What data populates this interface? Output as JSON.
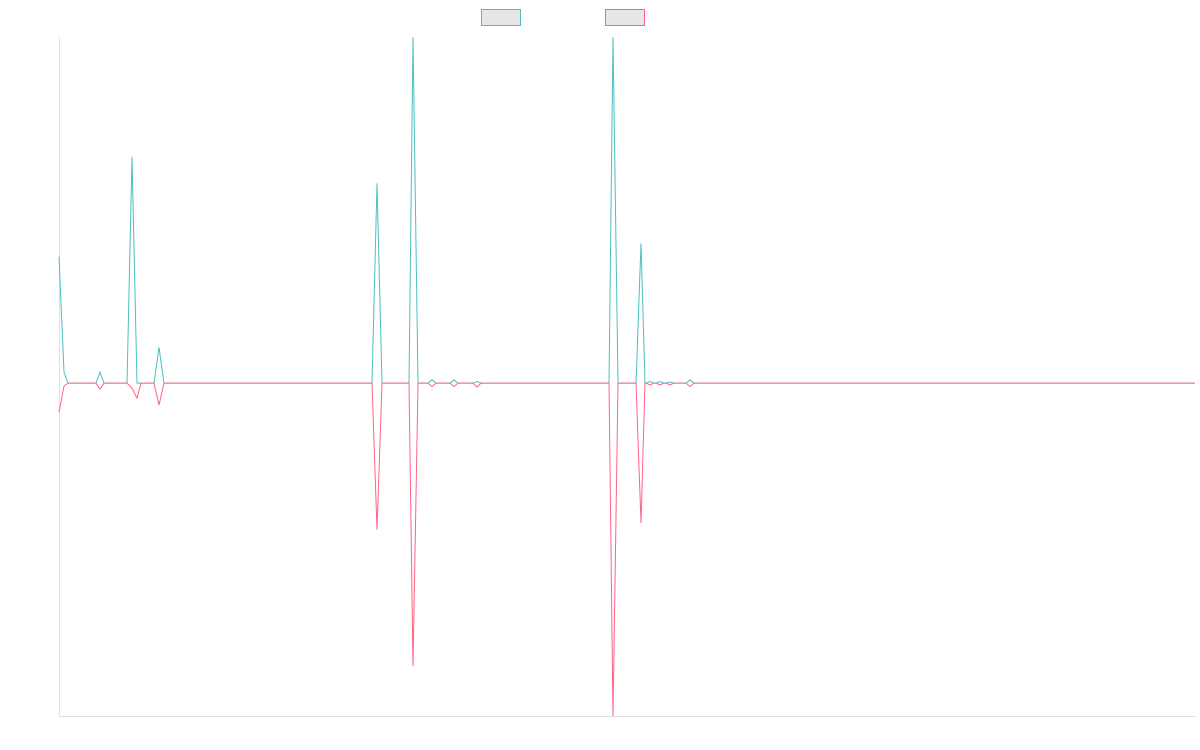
{
  "chart_data": {
    "type": "line",
    "x": [
      0,
      5,
      9,
      37,
      41,
      45,
      68,
      73,
      78,
      82,
      95,
      100,
      105,
      313,
      318,
      323,
      350,
      354,
      359,
      369,
      373,
      377,
      391,
      395,
      399,
      414,
      418,
      422,
      550,
      554,
      559,
      577,
      582,
      586,
      587,
      591,
      595,
      597,
      601,
      605,
      607,
      611,
      615,
      627,
      631,
      635,
      1136
    ],
    "series": [
      {
        "color": "#4bc0c0",
        "values": [
          38,
          3.3,
          0,
          0,
          3.3,
          0,
          0,
          68,
          0,
          0,
          0,
          10.8,
          0,
          0,
          60,
          0,
          0,
          104,
          0,
          0,
          1,
          0,
          0,
          1,
          0,
          0,
          0.5,
          0,
          0,
          104,
          0,
          0,
          42,
          0,
          0,
          0.5,
          0,
          0,
          0.5,
          0,
          0,
          0.3,
          0,
          0,
          1,
          0,
          0
        ]
      },
      {
        "color": "#ff6384",
        "values": [
          -8.7,
          -0.9,
          0,
          0,
          -1.8,
          0,
          0,
          -1.5,
          -4.5,
          0,
          0,
          -6.6,
          0,
          0,
          -44,
          0,
          0,
          -85,
          0,
          0,
          -1,
          0,
          0,
          -1,
          0,
          0,
          -1.2,
          0,
          0,
          -100,
          0,
          0,
          -42,
          0,
          0,
          -0.5,
          0,
          0,
          -0.5,
          0,
          0,
          -0.5,
          0,
          0,
          -1,
          0,
          0
        ]
      }
    ],
    "xlim": [
      0,
      1136
    ],
    "ylim": [
      -100,
      104
    ],
    "grid": false
  }
}
